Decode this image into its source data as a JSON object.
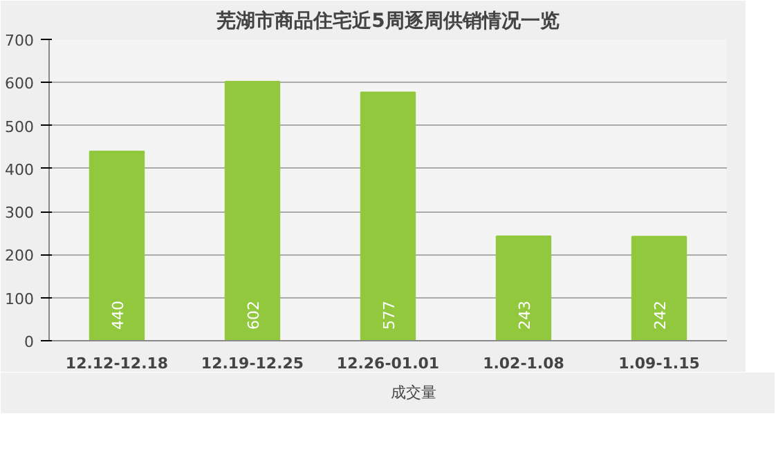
{
  "chart_data": {
    "type": "bar",
    "title": "芜湖市商品住宅近5周逐周供销情况一览",
    "categories": [
      "12.12-12.18",
      "12.19-12.25",
      "12.26-01.01",
      "1.02-1.08",
      "1.09-1.15"
    ],
    "series": [
      {
        "name": "成交量",
        "color": "#92c83e",
        "values": [
          440,
          602,
          577,
          243,
          242
        ]
      }
    ],
    "ylim": [
      0,
      700
    ],
    "yticks": [
      0,
      100,
      200,
      300,
      400,
      500,
      600,
      700
    ],
    "grid": "y",
    "legend": "bottom",
    "data_labels": true
  }
}
